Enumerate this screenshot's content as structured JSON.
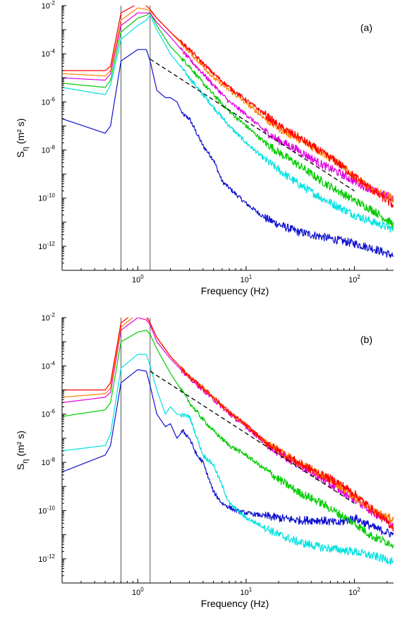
{
  "chart_data": [
    {
      "type": "line",
      "panel_label": "(a)",
      "xlabel": "Frequency (Hz)",
      "ylabel_main": "S",
      "ylabel_sub": "η",
      "ylabel_unit": "(m² s)",
      "x_scale": "log",
      "y_scale": "log",
      "xlim": [
        0.2,
        230
      ],
      "ylim": [
        1e-13,
        0.01
      ],
      "x_ticks": [
        {
          "value": 1,
          "base": "10",
          "exp": "0"
        },
        {
          "value": 10,
          "base": "10",
          "exp": "1"
        },
        {
          "value": 100,
          "base": "10",
          "exp": "2"
        }
      ],
      "y_ticks": [
        {
          "value": 0.01,
          "base": "10",
          "exp": "-2"
        },
        {
          "value": 0.0001,
          "base": "10",
          "exp": "-4"
        },
        {
          "value": 1e-06,
          "base": "10",
          "exp": "-6"
        },
        {
          "value": 1e-08,
          "base": "10",
          "exp": "-8"
        },
        {
          "value": 1e-10,
          "base": "10",
          "exp": "-10"
        },
        {
          "value": 1e-12,
          "base": "10",
          "exp": "-12"
        }
      ],
      "vertical_lines": [
        0.7,
        1.3
      ],
      "grid": false,
      "reference_line": {
        "style": "dashed",
        "color": "#000000",
        "x": [
          1.3,
          100
        ],
        "y": [
          6e-05,
          2e-10
        ]
      },
      "series": [
        {
          "color": "#1010d0",
          "x": [
            0.2,
            0.5,
            0.56,
            0.7,
            1.0,
            1.2,
            1.3,
            1.5,
            1.8,
            2.0,
            2.3,
            2.6,
            3.0,
            3.5,
            4.0,
            5.0,
            6.0,
            8.0,
            10,
            15,
            20,
            30,
            50,
            70,
            100,
            150,
            230
          ],
          "y": [
            2e-07,
            5e-08,
            1e-07,
            5e-05,
            0.00015,
            0.00015,
            5e-05,
            3e-06,
            1.5e-06,
            1.5e-06,
            1e-06,
            3e-07,
            2e-07,
            5e-08,
            1.5e-08,
            4e-09,
            5e-10,
            1.5e-10,
            6e-11,
            1.5e-11,
            8e-12,
            4e-12,
            2.5e-12,
            1.8e-12,
            1.3e-12,
            8e-13,
            4e-13
          ]
        },
        {
          "color": "#00e0e0",
          "x": [
            0.2,
            0.5,
            0.56,
            0.7,
            1.0,
            1.2,
            1.3,
            1.5,
            2.0,
            3.0,
            4.0,
            5.0,
            7.0,
            10,
            15,
            20,
            30,
            50,
            100,
            150,
            230
          ],
          "y": [
            4e-06,
            2e-06,
            5e-06,
            0.0004,
            0.0015,
            0.0025,
            0.004,
            0.001,
            0.0001,
            1e-05,
            2e-06,
            6e-07,
            1e-07,
            2e-08,
            4e-09,
            1.5e-09,
            4e-10,
            1e-10,
            2e-11,
            1e-11,
            5e-12
          ]
        },
        {
          "color": "#00cc00",
          "x": [
            0.2,
            0.5,
            0.56,
            0.7,
            1.0,
            1.2,
            1.3,
            1.5,
            2.0,
            3.0,
            4.0,
            5.0,
            7.0,
            10,
            15,
            20,
            30,
            50,
            100,
            150,
            230
          ],
          "y": [
            6e-06,
            4e-06,
            8e-06,
            0.0008,
            0.003,
            0.004,
            0.005,
            0.0015,
            0.0002,
            3e-05,
            6e-06,
            2e-06,
            4e-07,
            1e-07,
            2e-08,
            8e-09,
            2.5e-09,
            5e-10,
            8e-11,
            3e-11,
            8e-12
          ]
        },
        {
          "color": "#e000e0",
          "x": [
            0.2,
            0.5,
            0.56,
            0.7,
            1.0,
            1.2,
            1.3,
            1.5,
            2.0,
            3.0,
            4.0,
            5.0,
            7.0,
            10,
            15,
            20,
            30,
            50,
            70,
            100,
            150,
            230
          ],
          "y": [
            1e-05,
            8e-06,
            1.5e-05,
            0.0015,
            0.005,
            0.005,
            0.005,
            0.002,
            0.0005,
            6e-05,
            1.5e-05,
            5e-06,
            1e-06,
            3e-07,
            6e-08,
            2.5e-08,
            1e-08,
            2.5e-09,
            1.2e-09,
            5e-10,
            2e-10,
            1e-10
          ]
        },
        {
          "color": "#ff8000",
          "x": [
            0.2,
            0.5,
            0.56,
            0.7,
            1.0,
            1.2,
            1.3,
            1.5,
            2.0,
            3.0,
            4.0,
            5.0,
            7.0,
            10,
            15,
            20,
            30,
            50,
            70,
            100,
            150,
            230
          ],
          "y": [
            1.5e-05,
            1.2e-05,
            2e-05,
            0.0025,
            0.008,
            0.007,
            0.006,
            0.003,
            0.0008,
            0.00012,
            3e-05,
            1e-05,
            3e-06,
            9e-07,
            2e-07,
            8e-08,
            3e-08,
            8e-09,
            3e-09,
            8e-10,
            2e-10,
            1e-10
          ]
        },
        {
          "color": "#ff0000",
          "x": [
            0.2,
            0.5,
            0.56,
            0.7,
            1.0,
            1.2,
            1.3,
            1.5,
            2.0,
            3.0,
            4.0,
            5.0,
            7.0,
            10,
            15,
            20,
            30,
            50,
            70,
            100,
            150,
            230
          ],
          "y": [
            2e-05,
            2e-05,
            3e-05,
            0.005,
            0.012,
            0.01,
            0.007,
            0.003,
            0.0008,
            0.00015,
            4e-05,
            1.5e-05,
            4e-06,
            1.2e-06,
            3e-07,
            1e-07,
            3.5e-08,
            8e-09,
            3e-09,
            8e-10,
            2e-10,
            5e-11
          ]
        }
      ]
    },
    {
      "type": "line",
      "panel_label": "(b)",
      "xlabel": "Frequency (Hz)",
      "ylabel_main": "S",
      "ylabel_sub": "η",
      "ylabel_unit": "(m² s)",
      "x_scale": "log",
      "y_scale": "log",
      "xlim": [
        0.2,
        230
      ],
      "ylim": [
        1e-13,
        0.01
      ],
      "x_ticks": [
        {
          "value": 1,
          "base": "10",
          "exp": "0"
        },
        {
          "value": 10,
          "base": "10",
          "exp": "1"
        },
        {
          "value": 100,
          "base": "10",
          "exp": "2"
        }
      ],
      "y_ticks": [
        {
          "value": 0.01,
          "base": "10",
          "exp": "-2"
        },
        {
          "value": 0.0001,
          "base": "10",
          "exp": "-4"
        },
        {
          "value": 1e-06,
          "base": "10",
          "exp": "-6"
        },
        {
          "value": 1e-08,
          "base": "10",
          "exp": "-8"
        },
        {
          "value": 1e-10,
          "base": "10",
          "exp": "-10"
        },
        {
          "value": 1e-12,
          "base": "10",
          "exp": "-12"
        }
      ],
      "vertical_lines": [
        0.7,
        1.3
      ],
      "grid": false,
      "reference_line": {
        "style": "dashed",
        "color": "#000000",
        "x": [
          1.3,
          100
        ],
        "y": [
          6e-05,
          2e-10
        ]
      },
      "series": [
        {
          "color": "#1010d0",
          "x": [
            0.2,
            0.5,
            0.56,
            0.7,
            1.0,
            1.2,
            1.3,
            1.5,
            1.8,
            2.0,
            2.3,
            2.6,
            3.0,
            3.5,
            4.0,
            5.0,
            6.0,
            8.0,
            10,
            15,
            20,
            30,
            50,
            70,
            100,
            150,
            230
          ],
          "y": [
            4e-09,
            2e-08,
            5e-08,
            2e-05,
            7e-05,
            6e-05,
            1.5e-05,
            1e-06,
            3e-07,
            4e-07,
            1e-07,
            2e-07,
            1e-07,
            2e-08,
            1e-08,
            6e-10,
            2e-10,
            1e-10,
            8e-11,
            6e-11,
            5e-11,
            4e-11,
            4e-11,
            3e-11,
            5e-11,
            2e-11,
            1e-11
          ]
        },
        {
          "color": "#00e0e0",
          "x": [
            0.2,
            0.5,
            0.56,
            0.7,
            1.0,
            1.2,
            1.3,
            1.5,
            1.8,
            2.0,
            2.3,
            3.0,
            4.0,
            5.0,
            7.0,
            10,
            15,
            20,
            30,
            50,
            100,
            150,
            230
          ],
          "y": [
            3e-08,
            5e-08,
            1.5e-07,
            8e-05,
            0.0003,
            0.0003,
            0.0001,
            1e-05,
            1e-06,
            2e-06,
            1e-06,
            8e-07,
            2e-08,
            8e-09,
            2e-10,
            5e-11,
            2e-11,
            1e-11,
            5e-12,
            3e-12,
            2e-12,
            1.3e-12,
            8e-13
          ]
        },
        {
          "color": "#00cc00",
          "x": [
            0.2,
            0.5,
            0.56,
            0.7,
            1.0,
            1.2,
            1.3,
            1.5,
            2.0,
            3.0,
            4.0,
            5.0,
            7.0,
            10,
            15,
            20,
            30,
            50,
            100,
            150,
            230
          ],
          "y": [
            8e-07,
            1.5e-06,
            3e-06,
            0.001,
            0.0025,
            0.003,
            0.002,
            0.0005,
            5e-05,
            3e-06,
            6e-07,
            2e-07,
            5e-08,
            2e-08,
            5e-09,
            2e-09,
            6e-10,
            2e-10,
            3e-11,
            8e-12,
            4e-12
          ]
        },
        {
          "color": "#e000e0",
          "x": [
            0.2,
            0.5,
            0.56,
            0.7,
            1.0,
            1.2,
            1.3,
            1.5,
            2.0,
            3.0,
            4.0,
            5.0,
            7.0,
            10,
            15,
            20,
            30,
            50,
            70,
            100,
            150,
            230
          ],
          "y": [
            3e-06,
            5e-06,
            8e-06,
            0.003,
            0.01,
            0.008,
            0.005,
            0.001,
            0.0002,
            3e-05,
            1e-05,
            4e-06,
            1e-06,
            3e-07,
            6e-08,
            2.5e-08,
            8e-09,
            2e-09,
            8e-10,
            3e-10,
            8e-11,
            3e-11
          ]
        },
        {
          "color": "#ff8000",
          "x": [
            0.2,
            0.5,
            0.56,
            0.7,
            1.0,
            1.2,
            1.3,
            1.5,
            2.0,
            3.0,
            4.0,
            5.0,
            7.0,
            10,
            15,
            20,
            30,
            50,
            70,
            100,
            150,
            230
          ],
          "y": [
            5e-06,
            7e-06,
            1.2e-05,
            0.004,
            0.015,
            0.01,
            0.006,
            0.0015,
            0.00025,
            3.5e-05,
            1.2e-05,
            5e-06,
            1.2e-06,
            3.5e-07,
            7e-08,
            3e-08,
            1e-08,
            3e-09,
            1.2e-09,
            4e-10,
            1e-10,
            4e-11
          ]
        },
        {
          "color": "#ff0000",
          "x": [
            0.2,
            0.5,
            0.56,
            0.7,
            1.0,
            1.2,
            1.3,
            1.5,
            2.0,
            3.0,
            4.0,
            5.0,
            7.0,
            10,
            15,
            20,
            30,
            50,
            70,
            100,
            150,
            230
          ],
          "y": [
            1e-05,
            1e-05,
            2e-05,
            0.006,
            0.02,
            0.012,
            0.006,
            0.0015,
            0.00025,
            3.5e-05,
            1.2e-05,
            5e-06,
            1.2e-06,
            3.5e-07,
            7e-08,
            3e-08,
            1e-08,
            3e-09,
            1.5e-09,
            5e-10,
            1e-10,
            2e-11
          ]
        }
      ]
    }
  ]
}
